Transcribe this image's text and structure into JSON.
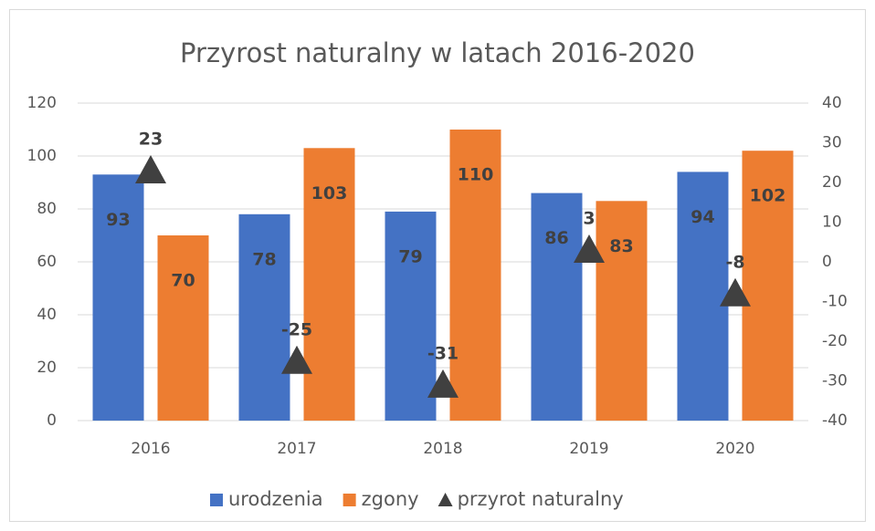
{
  "chart_data": {
    "type": "bar",
    "title": "Przyrost naturalny w latach 2016-2020",
    "categories": [
      "2016",
      "2017",
      "2018",
      "2019",
      "2020"
    ],
    "series": [
      {
        "name": "urodzenia",
        "color": "#4472c4",
        "type": "bar",
        "values": [
          93,
          78,
          79,
          86,
          94
        ]
      },
      {
        "name": "zgony",
        "color": "#ed7d31",
        "type": "bar",
        "values": [
          70,
          103,
          110,
          83,
          102
        ]
      },
      {
        "name": "przyrot naturalny",
        "color": "#404040",
        "type": "marker",
        "axis": "y2",
        "values": [
          23,
          -25,
          -31,
          3,
          -8
        ]
      }
    ],
    "ylim": [
      0,
      120
    ],
    "yticks": [
      0,
      20,
      40,
      60,
      80,
      100,
      120
    ],
    "y2lim": [
      -40,
      40
    ],
    "y2ticks": [
      -40,
      -30,
      -20,
      -10,
      0,
      10,
      20,
      30,
      40
    ],
    "grid": true,
    "legend": "bottom"
  }
}
